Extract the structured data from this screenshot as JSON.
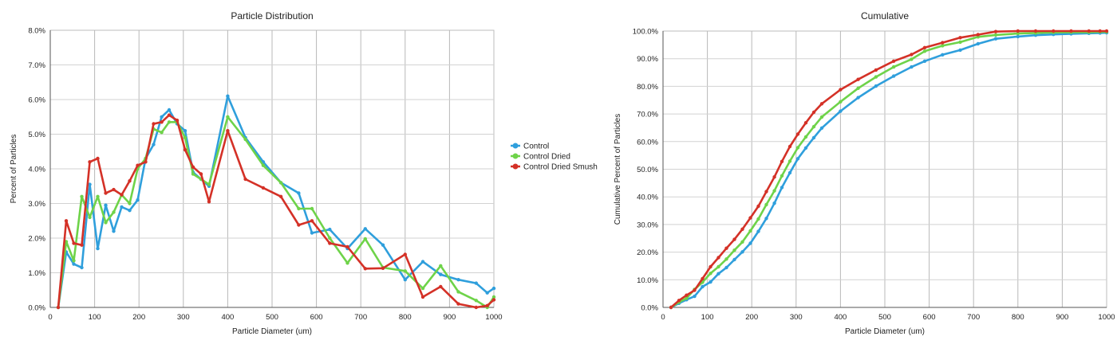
{
  "chart_data": [
    {
      "type": "line",
      "title": "Particle Distribution",
      "xlabel": "Particle Diameter (um)",
      "ylabel": "Percent of Particles",
      "xlim": [
        0,
        1000
      ],
      "ylim": [
        0,
        0.08
      ],
      "x_ticks": [
        "0",
        "100",
        "200",
        "300",
        "400",
        "500",
        "600",
        "700",
        "800",
        "900",
        "1000"
      ],
      "y_ticks": [
        "0.0%",
        "1.0%",
        "2.0%",
        "3.0%",
        "4.0%",
        "5.0%",
        "6.0%",
        "7.0%",
        "8.0%"
      ],
      "grid": true,
      "legend": "right",
      "series": [
        {
          "name": "Control",
          "color": "#2f9fdc",
          "points": [
            [
              18,
              0.0
            ],
            [
              36,
              1.6
            ],
            [
              53,
              1.25
            ],
            [
              71,
              1.15
            ],
            [
              89,
              3.55
            ],
            [
              107,
              1.7
            ],
            [
              125,
              2.95
            ],
            [
              143,
              2.2
            ],
            [
              161,
              2.9
            ],
            [
              179,
              2.8
            ],
            [
              197,
              3.1
            ],
            [
              215,
              4.3
            ],
            [
              233,
              4.7
            ],
            [
              251,
              5.5
            ],
            [
              268,
              5.7
            ],
            [
              286,
              5.3
            ],
            [
              304,
              5.1
            ],
            [
              322,
              3.9
            ],
            [
              340,
              3.7
            ],
            [
              358,
              3.5
            ],
            [
              400,
              6.1
            ],
            [
              440,
              4.9
            ],
            [
              480,
              4.2
            ],
            [
              520,
              3.6
            ],
            [
              560,
              3.3
            ],
            [
              590,
              2.15
            ],
            [
              630,
              2.25
            ],
            [
              670,
              1.7
            ],
            [
              710,
              2.27
            ],
            [
              750,
              1.8
            ],
            [
              800,
              0.8
            ],
            [
              840,
              1.32
            ],
            [
              880,
              0.95
            ],
            [
              920,
              0.8
            ],
            [
              960,
              0.7
            ],
            [
              985,
              0.42
            ],
            [
              1000,
              0.55
            ]
          ]
        },
        {
          "name": "Control Dried",
          "color": "#6ed349",
          "points": [
            [
              18,
              0.0
            ],
            [
              36,
              1.9
            ],
            [
              53,
              1.35
            ],
            [
              71,
              3.2
            ],
            [
              89,
              2.6
            ],
            [
              107,
              3.2
            ],
            [
              125,
              2.45
            ],
            [
              143,
              2.75
            ],
            [
              161,
              3.25
            ],
            [
              179,
              3.0
            ],
            [
              197,
              4.0
            ],
            [
              215,
              4.3
            ],
            [
              233,
              5.15
            ],
            [
              251,
              5.05
            ],
            [
              268,
              5.35
            ],
            [
              286,
              5.35
            ],
            [
              304,
              4.9
            ],
            [
              322,
              3.85
            ],
            [
              340,
              3.7
            ],
            [
              358,
              3.55
            ],
            [
              400,
              5.5
            ],
            [
              440,
              4.85
            ],
            [
              480,
              4.1
            ],
            [
              520,
              3.6
            ],
            [
              560,
              2.85
            ],
            [
              590,
              2.85
            ],
            [
              630,
              2.0
            ],
            [
              670,
              1.28
            ],
            [
              710,
              1.98
            ],
            [
              750,
              1.15
            ],
            [
              800,
              1.05
            ],
            [
              840,
              0.55
            ],
            [
              880,
              1.2
            ],
            [
              920,
              0.45
            ],
            [
              960,
              0.2
            ],
            [
              985,
              0.0
            ],
            [
              1000,
              0.3
            ]
          ]
        },
        {
          "name": "Control Dried Smush",
          "color": "#d43127",
          "points": [
            [
              18,
              0.0
            ],
            [
              36,
              2.5
            ],
            [
              53,
              1.85
            ],
            [
              71,
              1.8
            ],
            [
              89,
              4.2
            ],
            [
              107,
              4.3
            ],
            [
              125,
              3.3
            ],
            [
              143,
              3.4
            ],
            [
              161,
              3.25
            ],
            [
              179,
              3.65
            ],
            [
              197,
              4.1
            ],
            [
              215,
              4.2
            ],
            [
              233,
              5.3
            ],
            [
              251,
              5.35
            ],
            [
              268,
              5.55
            ],
            [
              286,
              5.4
            ],
            [
              304,
              4.55
            ],
            [
              322,
              4.05
            ],
            [
              340,
              3.85
            ],
            [
              358,
              3.05
            ],
            [
              400,
              5.1
            ],
            [
              440,
              3.7
            ],
            [
              480,
              3.45
            ],
            [
              520,
              3.2
            ],
            [
              560,
              2.38
            ],
            [
              590,
              2.5
            ],
            [
              630,
              1.85
            ],
            [
              670,
              1.75
            ],
            [
              710,
              1.12
            ],
            [
              750,
              1.13
            ],
            [
              800,
              1.53
            ],
            [
              840,
              0.3
            ],
            [
              880,
              0.6
            ],
            [
              920,
              0.1
            ],
            [
              960,
              0.0
            ],
            [
              985,
              0.05
            ],
            [
              1000,
              0.22
            ]
          ]
        }
      ]
    },
    {
      "type": "line",
      "title": "Cumulative",
      "xlabel": "Particle Diameter (um)",
      "ylabel": "Cumulative Percent of Particles",
      "xlim": [
        0,
        1000
      ],
      "ylim": [
        0,
        1.0
      ],
      "x_ticks": [
        "0",
        "100",
        "200",
        "300",
        "400",
        "500",
        "600",
        "700",
        "800",
        "900",
        "1000"
      ],
      "y_ticks": [
        "0.0%",
        "10.0%",
        "20.0%",
        "30.0%",
        "40.0%",
        "50.0%",
        "60.0%",
        "70.0%",
        "80.0%",
        "90.0%",
        "100.0%"
      ],
      "grid": true,
      "series": [
        {
          "name": "Control",
          "color": "#2f9fdc",
          "points": [
            [
              18,
              0
            ],
            [
              36,
              1.5
            ],
            [
              53,
              2.8
            ],
            [
              71,
              4.0
            ],
            [
              89,
              7.5
            ],
            [
              107,
              9.2
            ],
            [
              125,
              12.2
            ],
            [
              143,
              14.4
            ],
            [
              161,
              17.3
            ],
            [
              179,
              20.1
            ],
            [
              197,
              23.2
            ],
            [
              215,
              27.5
            ],
            [
              233,
              32.2
            ],
            [
              251,
              37.7
            ],
            [
              268,
              43.4
            ],
            [
              286,
              48.7
            ],
            [
              304,
              53.8
            ],
            [
              322,
              57.7
            ],
            [
              340,
              61.4
            ],
            [
              358,
              64.9
            ],
            [
              400,
              71.0
            ],
            [
              440,
              75.9
            ],
            [
              480,
              80.1
            ],
            [
              520,
              83.7
            ],
            [
              560,
              87.0
            ],
            [
              590,
              89.1
            ],
            [
              630,
              91.4
            ],
            [
              670,
              93.1
            ],
            [
              710,
              95.4
            ],
            [
              750,
              97.2
            ],
            [
              800,
              98.0
            ],
            [
              840,
              98.5
            ],
            [
              880,
              98.8
            ],
            [
              920,
              99.0
            ],
            [
              960,
              99.2
            ],
            [
              985,
              99.3
            ],
            [
              1000,
              99.4
            ]
          ]
        },
        {
          "name": "Control Dried",
          "color": "#6ed349",
          "points": [
            [
              18,
              0
            ],
            [
              36,
              1.9
            ],
            [
              53,
              3.3
            ],
            [
              71,
              6.5
            ],
            [
              89,
              9.1
            ],
            [
              107,
              12.3
            ],
            [
              125,
              14.7
            ],
            [
              143,
              17.5
            ],
            [
              161,
              20.7
            ],
            [
              179,
              23.7
            ],
            [
              197,
              27.7
            ],
            [
              215,
              32.0
            ],
            [
              233,
              37.2
            ],
            [
              251,
              42.2
            ],
            [
              268,
              47.6
            ],
            [
              286,
              52.9
            ],
            [
              304,
              57.8
            ],
            [
              322,
              61.7
            ],
            [
              340,
              65.4
            ],
            [
              358,
              68.9
            ],
            [
              400,
              74.4
            ],
            [
              440,
              79.3
            ],
            [
              480,
              83.4
            ],
            [
              520,
              87.0
            ],
            [
              560,
              89.8
            ],
            [
              590,
              92.7
            ],
            [
              630,
              94.7
            ],
            [
              670,
              96.0
            ],
            [
              710,
              97.9
            ],
            [
              750,
              98.6
            ],
            [
              800,
              99.1
            ],
            [
              840,
              99.3
            ],
            [
              880,
              99.5
            ],
            [
              920,
              99.6
            ],
            [
              960,
              99.6
            ],
            [
              985,
              99.7
            ],
            [
              1000,
              99.7
            ]
          ]
        },
        {
          "name": "Control Dried Smush",
          "color": "#d43127",
          "points": [
            [
              18,
              0
            ],
            [
              36,
              2.5
            ],
            [
              53,
              4.4
            ],
            [
              71,
              6.2
            ],
            [
              89,
              10.4
            ],
            [
              107,
              14.7
            ],
            [
              125,
              18.0
            ],
            [
              143,
              21.4
            ],
            [
              161,
              24.6
            ],
            [
              179,
              28.3
            ],
            [
              197,
              32.4
            ],
            [
              215,
              36.6
            ],
            [
              233,
              41.9
            ],
            [
              251,
              47.2
            ],
            [
              268,
              52.8
            ],
            [
              286,
              58.2
            ],
            [
              304,
              62.7
            ],
            [
              322,
              66.8
            ],
            [
              340,
              70.6
            ],
            [
              358,
              73.7
            ],
            [
              400,
              78.8
            ],
            [
              440,
              82.5
            ],
            [
              480,
              85.9
            ],
            [
              520,
              89.1
            ],
            [
              560,
              91.5
            ],
            [
              590,
              94.0
            ],
            [
              630,
              95.8
            ],
            [
              670,
              97.6
            ],
            [
              710,
              98.7
            ],
            [
              750,
              99.8
            ],
            [
              800,
              101.0
            ],
            [
              840,
              101.3
            ],
            [
              880,
              101.6
            ],
            [
              920,
              101.7
            ],
            [
              960,
              101.7
            ],
            [
              985,
              101.75
            ],
            [
              1000,
              101.8
            ]
          ]
        }
      ]
    }
  ]
}
